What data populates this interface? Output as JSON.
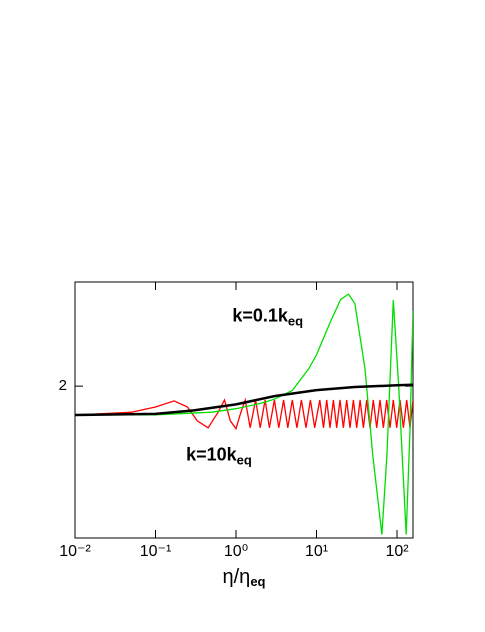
{
  "chart_data": {
    "type": "line",
    "xlabel": "η/η",
    "xlabel_sub": "eq",
    "xscale": "log",
    "xlim": [
      0.01,
      158
    ],
    "xticks": [
      {
        "value": 0.01,
        "label": "10⁻²"
      },
      {
        "value": 0.1,
        "label": "10⁻¹"
      },
      {
        "value": 1,
        "label": "10⁰"
      },
      {
        "value": 10,
        "label": "10¹"
      },
      {
        "value": 100,
        "label": "10²"
      }
    ],
    "ylim": [
      0.25,
      3.2
    ],
    "yticks": [
      2
    ],
    "annotations": [
      {
        "text": "k=0.1k",
        "sub": "eq",
        "x": 0.9,
        "y": 2.8
      },
      {
        "text": "k=10k",
        "sub": "eq",
        "x": 0.24,
        "y": 1.2
      }
    ],
    "series": [
      {
        "color": "#ff0000",
        "x": [
          0.01,
          0.05,
          0.1,
          0.17,
          0.25,
          0.33,
          0.45,
          0.6,
          0.72,
          0.85,
          1.0,
          1.15,
          1.3,
          1.5,
          1.75,
          2.0,
          2.3,
          2.6,
          3.0,
          3.4,
          3.9,
          4.4,
          5,
          5.7,
          6.5,
          7.4,
          8.4,
          9.5,
          11,
          12.2,
          13.4,
          14.7,
          16.2,
          17.8,
          19.6,
          21.6,
          23.7,
          26.1,
          28.7,
          31.6,
          34.8,
          38.2,
          42,
          46.2,
          50.8,
          55.9,
          61.5,
          67.7,
          74.4,
          81.9,
          90,
          99,
          109,
          120,
          132,
          145,
          158
        ],
        "values": [
          1.667,
          1.7,
          1.76,
          1.83,
          1.76,
          1.6,
          1.52,
          1.7,
          1.84,
          1.6,
          1.51,
          1.7,
          1.84,
          1.52,
          1.84,
          1.52,
          1.84,
          1.52,
          1.84,
          1.52,
          1.84,
          1.52,
          1.84,
          1.52,
          1.84,
          1.52,
          1.84,
          1.52,
          1.84,
          1.52,
          1.84,
          1.52,
          1.84,
          1.52,
          1.84,
          1.52,
          1.84,
          1.52,
          1.84,
          1.52,
          1.84,
          1.52,
          1.84,
          1.52,
          1.84,
          1.52,
          1.84,
          1.52,
          1.84,
          1.52,
          1.84,
          1.52,
          1.84,
          1.52,
          1.84,
          1.52,
          1.84
        ]
      },
      {
        "color": "#00dd00",
        "x": [
          0.01,
          0.1,
          0.5,
          1,
          2,
          3,
          5,
          8,
          10,
          15,
          20,
          25,
          30,
          40,
          50,
          65,
          75,
          90,
          105,
          130,
          145,
          158
        ],
        "values": [
          1.667,
          1.67,
          1.7,
          1.74,
          1.8,
          1.85,
          1.95,
          2.2,
          2.36,
          2.75,
          3.0,
          3.06,
          2.95,
          2.2,
          1.2,
          0.29,
          1.2,
          2.99,
          2.0,
          0.29,
          1.5,
          2.87
        ]
      },
      {
        "color": "#000000",
        "x": [
          0.01,
          0.1,
          0.3,
          1,
          3,
          10,
          30,
          100,
          158
        ],
        "values": [
          1.667,
          1.68,
          1.72,
          1.79,
          1.885,
          1.954,
          1.99,
          2.01,
          2.015
        ]
      }
    ]
  }
}
